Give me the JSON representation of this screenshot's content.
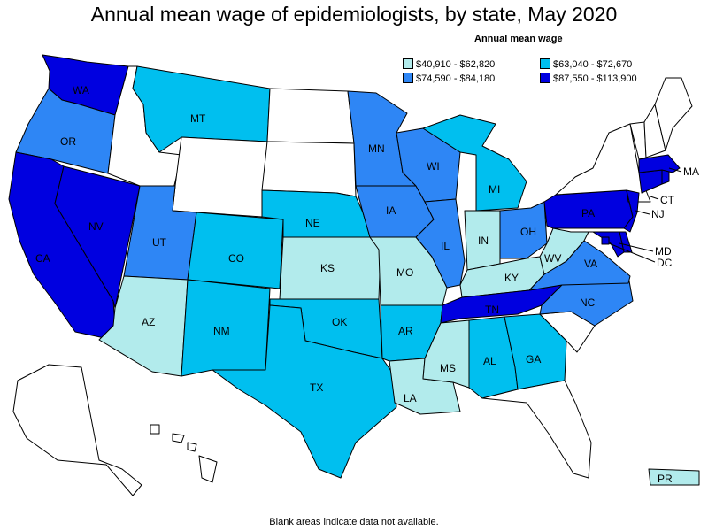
{
  "title": "Annual mean wage of epidemiologists, by state, May 2020",
  "legend": {
    "title": "Annual mean wage",
    "items": [
      {
        "label": "$40,910 - $62,820",
        "color": "#b2ebec"
      },
      {
        "label": "$63,040 - $72,670",
        "color": "#00bfef"
      },
      {
        "label": "$74,590 - $84,180",
        "color": "#2e86f5"
      },
      {
        "label": "$87,550 - $113,900",
        "color": "#0000e0"
      }
    ]
  },
  "footnote": "Blank areas indicate data not available.",
  "no_data_color": "#ffffff",
  "states": {
    "WA": {
      "label": "WA",
      "tier": 4
    },
    "OR": {
      "label": "OR",
      "tier": 3
    },
    "CA": {
      "label": "CA",
      "tier": 4
    },
    "NV": {
      "label": "NV",
      "tier": 4
    },
    "ID": {
      "label": "",
      "tier": 0
    },
    "MT": {
      "label": "MT",
      "tier": 2
    },
    "WY": {
      "label": "",
      "tier": 0
    },
    "UT": {
      "label": "UT",
      "tier": 3
    },
    "CO": {
      "label": "CO",
      "tier": 2
    },
    "AZ": {
      "label": "AZ",
      "tier": 1
    },
    "NM": {
      "label": "NM",
      "tier": 2
    },
    "ND": {
      "label": "",
      "tier": 0
    },
    "SD": {
      "label": "",
      "tier": 0
    },
    "NE": {
      "label": "NE",
      "tier": 2
    },
    "KS": {
      "label": "KS",
      "tier": 1
    },
    "OK": {
      "label": "OK",
      "tier": 2
    },
    "TX": {
      "label": "TX",
      "tier": 2
    },
    "MN": {
      "label": "MN",
      "tier": 3
    },
    "IA": {
      "label": "IA",
      "tier": 3
    },
    "MO": {
      "label": "MO",
      "tier": 1
    },
    "AR": {
      "label": "AR",
      "tier": 2
    },
    "LA": {
      "label": "LA",
      "tier": 1
    },
    "WI": {
      "label": "WI",
      "tier": 3
    },
    "IL": {
      "label": "IL",
      "tier": 3
    },
    "MI": {
      "label": "MI",
      "tier": 2
    },
    "IN": {
      "label": "IN",
      "tier": 1
    },
    "OH": {
      "label": "OH",
      "tier": 3
    },
    "KY": {
      "label": "KY",
      "tier": 1
    },
    "TN": {
      "label": "TN",
      "tier": 4
    },
    "MS": {
      "label": "MS",
      "tier": 1
    },
    "AL": {
      "label": "AL",
      "tier": 2
    },
    "GA": {
      "label": "GA",
      "tier": 2
    },
    "FL": {
      "label": "",
      "tier": 0
    },
    "SC": {
      "label": "",
      "tier": 0
    },
    "NC": {
      "label": "NC",
      "tier": 3
    },
    "VA": {
      "label": "VA",
      "tier": 3
    },
    "WV": {
      "label": "WV",
      "tier": 1
    },
    "PA": {
      "label": "PA",
      "tier": 4
    },
    "NY": {
      "label": "",
      "tier": 0
    },
    "NJ": {
      "label": "NJ",
      "tier": 4
    },
    "DE": {
      "label": "",
      "tier": 4
    },
    "MD": {
      "label": "MD",
      "tier": 4
    },
    "DC": {
      "label": "DC",
      "tier": 4
    },
    "CT": {
      "label": "CT",
      "tier": 4
    },
    "RI": {
      "label": "",
      "tier": 4
    },
    "MA": {
      "label": "MA",
      "tier": 4
    },
    "VT": {
      "label": "",
      "tier": 0
    },
    "NH": {
      "label": "",
      "tier": 0
    },
    "ME": {
      "label": "",
      "tier": 0
    },
    "AK": {
      "label": "",
      "tier": 0
    },
    "HI": {
      "label": "",
      "tier": 0
    },
    "PR": {
      "label": "PR",
      "tier": 1
    }
  }
}
